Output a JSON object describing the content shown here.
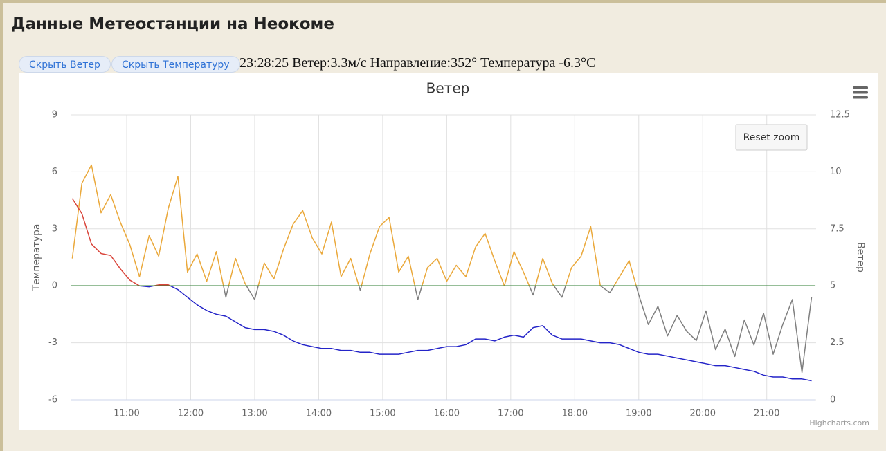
{
  "header": {
    "title": "Данные Метеостанции на Неокоме"
  },
  "controls": {
    "hide_wind": "Скрыть Ветер",
    "hide_temperature": "Скрыть Температуру",
    "status": "23:28:25 Ветер:3.3м/с Направление:352° Температура -6.3°C",
    "reset_zoom": "Reset zoom",
    "credits": "Highcharts.com"
  },
  "chart_data": {
    "type": "line",
    "title": "Ветер",
    "y_label": "Температура",
    "y2_label": "Ветер",
    "grid": true,
    "xlim": [
      10.135,
      21.76
    ],
    "xticks": [
      {
        "value": 11,
        "label": "11:00"
      },
      {
        "value": 12,
        "label": "12:00"
      },
      {
        "value": 13,
        "label": "13:00"
      },
      {
        "value": 14,
        "label": "14:00"
      },
      {
        "value": 15,
        "label": "15:00"
      },
      {
        "value": 16,
        "label": "16:00"
      },
      {
        "value": 17,
        "label": "17:00"
      },
      {
        "value": 18,
        "label": "18:00"
      },
      {
        "value": 19,
        "label": "19:00"
      },
      {
        "value": 20,
        "label": "20:00"
      },
      {
        "value": 21,
        "label": "21:00"
      }
    ],
    "ylim": [
      -6,
      9
    ],
    "yticks": [
      -6,
      -3,
      0,
      3,
      6,
      9
    ],
    "y2lim": [
      0,
      12.5
    ],
    "y2ticks": [
      0,
      2.5,
      5,
      7.5,
      10,
      12.5
    ],
    "plot_lines": [
      {
        "value": 0,
        "color": "#2e7d32"
      }
    ],
    "x": [
      10.15,
      10.3,
      10.45,
      10.6,
      10.75,
      10.9,
      11.05,
      11.2,
      11.35,
      11.5,
      11.65,
      11.8,
      11.95,
      12.1,
      12.25,
      12.4,
      12.55,
      12.7,
      12.85,
      13,
      13.15,
      13.3,
      13.45,
      13.6,
      13.75,
      13.9,
      14.05,
      14.2,
      14.35,
      14.5,
      14.65,
      14.8,
      14.95,
      15.1,
      15.25,
      15.4,
      15.55,
      15.7,
      15.85,
      16,
      16.15,
      16.3,
      16.45,
      16.6,
      16.75,
      16.9,
      17.05,
      17.2,
      17.35,
      17.5,
      17.65,
      17.8,
      17.95,
      18.1,
      18.25,
      18.4,
      18.55,
      18.7,
      18.85,
      19,
      19.15,
      19.3,
      19.45,
      19.6,
      19.75,
      19.9,
      20.05,
      20.2,
      20.35,
      20.5,
      20.65,
      20.8,
      20.95,
      21.1,
      21.25,
      21.4,
      21.55,
      21.7
    ],
    "series": [
      {
        "name": "Ветер",
        "axis": "y2",
        "color": "#eaa83a",
        "threshold": 5,
        "negative_color": "#7f7f7f",
        "values": [
          6.2,
          9.5,
          10.3,
          8.2,
          9.0,
          7.8,
          6.8,
          5.4,
          7.2,
          6.3,
          8.4,
          9.8,
          5.6,
          6.4,
          5.2,
          6.5,
          4.5,
          6.2,
          5.1,
          4.4,
          6.0,
          5.3,
          6.6,
          7.7,
          8.3,
          7.1,
          6.4,
          7.8,
          5.4,
          6.2,
          4.8,
          6.4,
          7.6,
          8.0,
          5.6,
          6.3,
          4.4,
          5.8,
          6.2,
          5.2,
          5.9,
          5.4,
          6.7,
          7.3,
          6.1,
          5.0,
          6.5,
          5.6,
          4.6,
          6.2,
          5.1,
          4.5,
          5.8,
          6.3,
          7.6,
          5.0,
          4.7,
          5.4,
          6.1,
          4.6,
          3.3,
          4.1,
          2.8,
          3.7,
          3.0,
          2.6,
          3.9,
          2.2,
          3.1,
          1.9,
          3.5,
          2.4,
          3.8,
          2.0,
          3.3,
          4.4,
          1.2,
          4.5
        ]
      },
      {
        "name": "Температура",
        "axis": "y",
        "color": "#d9443a",
        "threshold": 0,
        "negative_color": "#2424c8",
        "values": [
          4.6,
          3.8,
          2.2,
          1.7,
          1.6,
          0.9,
          0.3,
          0.0,
          -0.05,
          0.05,
          0.05,
          -0.2,
          -0.6,
          -1.0,
          -1.3,
          -1.5,
          -1.6,
          -1.9,
          -2.2,
          -2.3,
          -2.3,
          -2.4,
          -2.6,
          -2.9,
          -3.1,
          -3.2,
          -3.3,
          -3.3,
          -3.4,
          -3.4,
          -3.5,
          -3.5,
          -3.6,
          -3.6,
          -3.6,
          -3.5,
          -3.4,
          -3.4,
          -3.3,
          -3.2,
          -3.2,
          -3.1,
          -2.8,
          -2.8,
          -2.9,
          -2.7,
          -2.6,
          -2.7,
          -2.2,
          -2.1,
          -2.6,
          -2.8,
          -2.8,
          -2.8,
          -2.9,
          -3.0,
          -3.0,
          -3.1,
          -3.3,
          -3.5,
          -3.6,
          -3.6,
          -3.7,
          -3.8,
          -3.9,
          -4.0,
          -4.1,
          -4.2,
          -4.2,
          -4.3,
          -4.4,
          -4.5,
          -4.7,
          -4.8,
          -4.8,
          -4.9,
          -4.9,
          -5.0
        ]
      }
    ]
  }
}
